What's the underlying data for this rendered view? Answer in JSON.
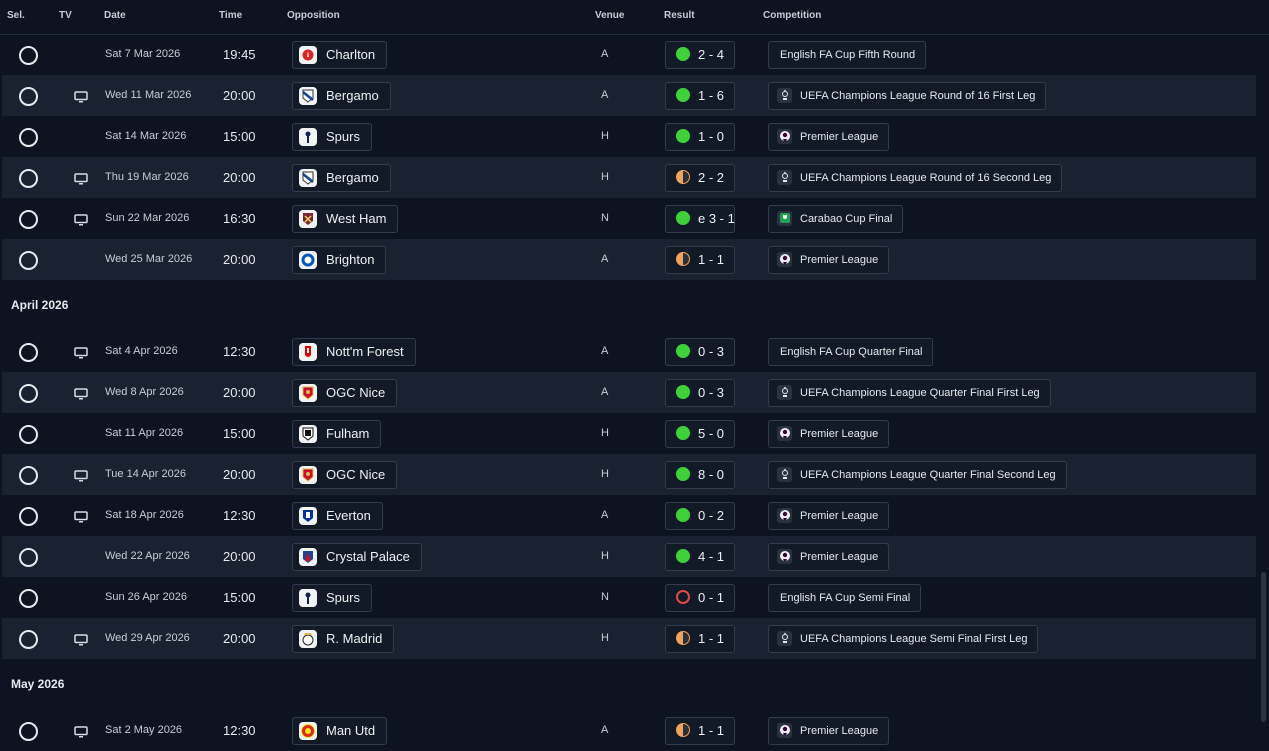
{
  "header": {
    "sel": "Sel.",
    "tv": "TV",
    "date": "Date",
    "time": "Time",
    "opposition": "Opposition",
    "venue": "Venue",
    "result": "Result",
    "competition": "Competition"
  },
  "groups": [
    {
      "month": "",
      "rows": [
        {
          "tv": false,
          "date": "Sat 7 Mar 2026",
          "time": "19:45",
          "opp": "Charlton",
          "crest": "charlton-crest-icon",
          "venue": "A",
          "outcome": "win",
          "score": "2 - 4",
          "comp": "English FA Cup Fifth Round",
          "comp_icon": ""
        },
        {
          "tv": true,
          "date": "Wed 11 Mar 2026",
          "time": "20:00",
          "opp": "Bergamo",
          "crest": "bergamo-crest-icon",
          "venue": "A",
          "outcome": "win",
          "score": "1 - 6",
          "comp": "UEFA Champions League Round of 16  First Leg",
          "comp_icon": "champions-league-icon"
        },
        {
          "tv": false,
          "date": "Sat 14 Mar 2026",
          "time": "15:00",
          "opp": "Spurs",
          "crest": "spurs-crest-icon",
          "venue": "H",
          "outcome": "win",
          "score": "1 - 0",
          "comp": "Premier League",
          "comp_icon": "premier-league-icon"
        },
        {
          "tv": true,
          "date": "Thu 19 Mar 2026",
          "time": "20:00",
          "opp": "Bergamo",
          "crest": "bergamo-crest-icon",
          "venue": "H",
          "outcome": "draw",
          "score": "2 - 2",
          "comp": "UEFA Champions League Round of 16  Second Leg",
          "comp_icon": "champions-league-icon"
        },
        {
          "tv": true,
          "date": "Sun 22 Mar 2026",
          "time": "16:30",
          "opp": "West Ham",
          "crest": "west-ham-crest-icon",
          "venue": "N",
          "outcome": "win",
          "score": "e 3 - 1",
          "comp": "Carabao Cup Final",
          "comp_icon": "carabao-cup-icon"
        },
        {
          "tv": false,
          "date": "Wed 25 Mar 2026",
          "time": "20:00",
          "opp": "Brighton",
          "crest": "brighton-crest-icon",
          "venue": "A",
          "outcome": "draw",
          "score": "1 - 1",
          "comp": "Premier League",
          "comp_icon": "premier-league-icon"
        }
      ]
    },
    {
      "month": "April 2026",
      "rows": [
        {
          "tv": true,
          "date": "Sat 4 Apr 2026",
          "time": "12:30",
          "opp": "Nott'm Forest",
          "crest": "forest-crest-icon",
          "venue": "A",
          "outcome": "win",
          "score": "0 - 3",
          "comp": "English FA Cup Quarter Final",
          "comp_icon": ""
        },
        {
          "tv": true,
          "date": "Wed 8 Apr 2026",
          "time": "20:00",
          "opp": "OGC Nice",
          "crest": "nice-crest-icon",
          "venue": "A",
          "outcome": "win",
          "score": "0 - 3",
          "comp": "UEFA Champions League Quarter Final First Leg",
          "comp_icon": "champions-league-icon"
        },
        {
          "tv": false,
          "date": "Sat 11 Apr 2026",
          "time": "15:00",
          "opp": "Fulham",
          "crest": "fulham-crest-icon",
          "venue": "H",
          "outcome": "win",
          "score": "5 - 0",
          "comp": "Premier League",
          "comp_icon": "premier-league-icon"
        },
        {
          "tv": true,
          "date": "Tue 14 Apr 2026",
          "time": "20:00",
          "opp": "OGC Nice",
          "crest": "nice-crest-icon",
          "venue": "H",
          "outcome": "win",
          "score": "8 - 0",
          "comp": "UEFA Champions League Quarter Final Second Leg",
          "comp_icon": "champions-league-icon"
        },
        {
          "tv": true,
          "date": "Sat 18 Apr 2026",
          "time": "12:30",
          "opp": "Everton",
          "crest": "everton-crest-icon",
          "venue": "A",
          "outcome": "win",
          "score": "0 - 2",
          "comp": "Premier League",
          "comp_icon": "premier-league-icon"
        },
        {
          "tv": false,
          "date": "Wed 22 Apr 2026",
          "time": "20:00",
          "opp": "Crystal Palace",
          "crest": "crystal-palace-crest-icon",
          "venue": "H",
          "outcome": "win",
          "score": "4 - 1",
          "comp": "Premier League",
          "comp_icon": "premier-league-icon"
        },
        {
          "tv": false,
          "date": "Sun 26 Apr 2026",
          "time": "15:00",
          "opp": "Spurs",
          "crest": "spurs-crest-icon",
          "venue": "N",
          "outcome": "loss",
          "score": "0 - 1",
          "comp": "English FA Cup Semi Final",
          "comp_icon": ""
        },
        {
          "tv": true,
          "date": "Wed 29 Apr 2026",
          "time": "20:00",
          "opp": "R. Madrid",
          "crest": "real-madrid-crest-icon",
          "venue": "H",
          "outcome": "draw",
          "score": "1 - 1",
          "comp": "UEFA Champions League Semi Final First Leg",
          "comp_icon": "champions-league-icon"
        }
      ]
    },
    {
      "month": "May 2026",
      "rows": [
        {
          "tv": true,
          "date": "Sat 2 May 2026",
          "time": "12:30",
          "opp": "Man Utd",
          "crest": "man-utd-crest-icon",
          "venue": "A",
          "outcome": "draw",
          "score": "1 - 1",
          "comp": "Premier League",
          "comp_icon": "premier-league-icon"
        }
      ]
    }
  ]
}
